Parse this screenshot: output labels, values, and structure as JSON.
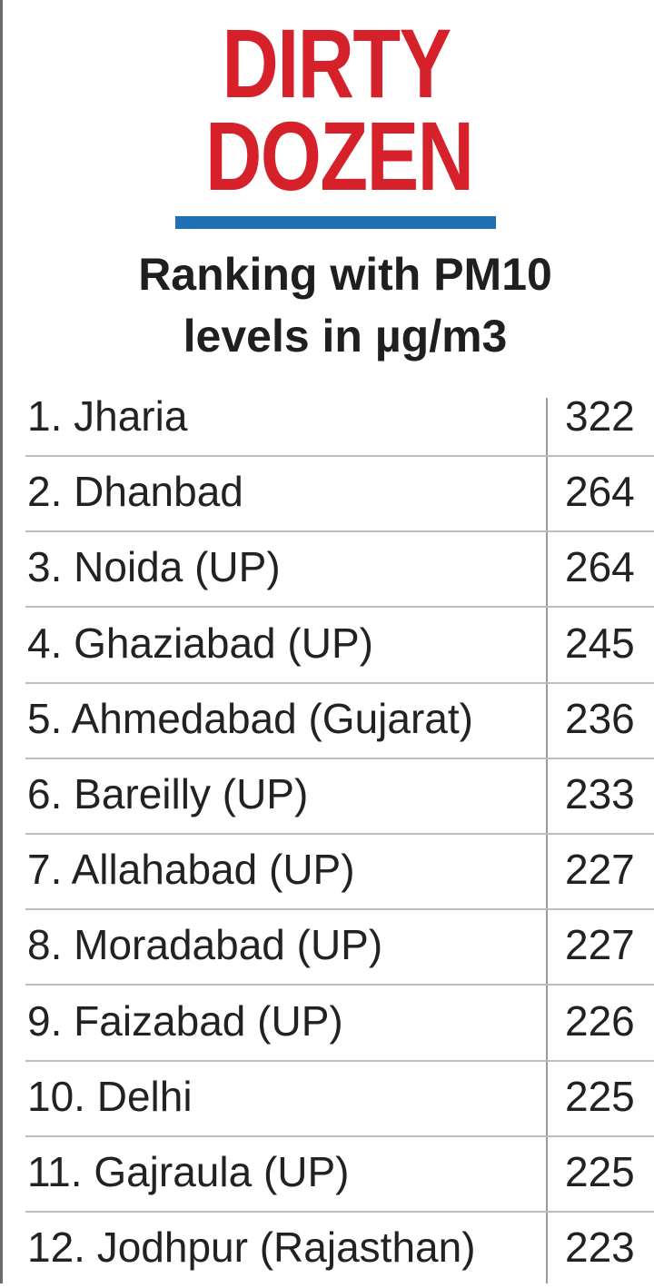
{
  "colors": {
    "title": "#d6202a",
    "title_bar": "#1f6fb4",
    "text": "#222222"
  },
  "header": {
    "title_line1": "DIRTY",
    "title_line2": "DOZEN",
    "subtitle_line1": "Ranking with PM10",
    "subtitle_line2": "levels in µg/m3"
  },
  "chart_data": {
    "type": "table",
    "title": "DIRTY DOZEN",
    "subtitle": "Ranking with PM10 levels in µg/m3",
    "rows": [
      {
        "label": "1. Jharia",
        "value": 322
      },
      {
        "label": "2. Dhanbad",
        "value": 264
      },
      {
        "label": "3. Noida (UP)",
        "value": 264
      },
      {
        "label": "4. Ghaziabad (UP)",
        "value": 245
      },
      {
        "label": "5. Ahmedabad (Gujarat)",
        "value": 236
      },
      {
        "label": "6. Bareilly (UP)",
        "value": 233
      },
      {
        "label": "7. Allahabad (UP)",
        "value": 227
      },
      {
        "label": "8. Moradabad (UP)",
        "value": 227
      },
      {
        "label": "9. Faizabad (UP)",
        "value": 226
      },
      {
        "label": "10. Delhi",
        "value": 225
      },
      {
        "label": "11. Gajraula (UP)",
        "value": 225
      },
      {
        "label": "12. Jodhpur (Rajasthan)",
        "value": 223
      }
    ]
  }
}
